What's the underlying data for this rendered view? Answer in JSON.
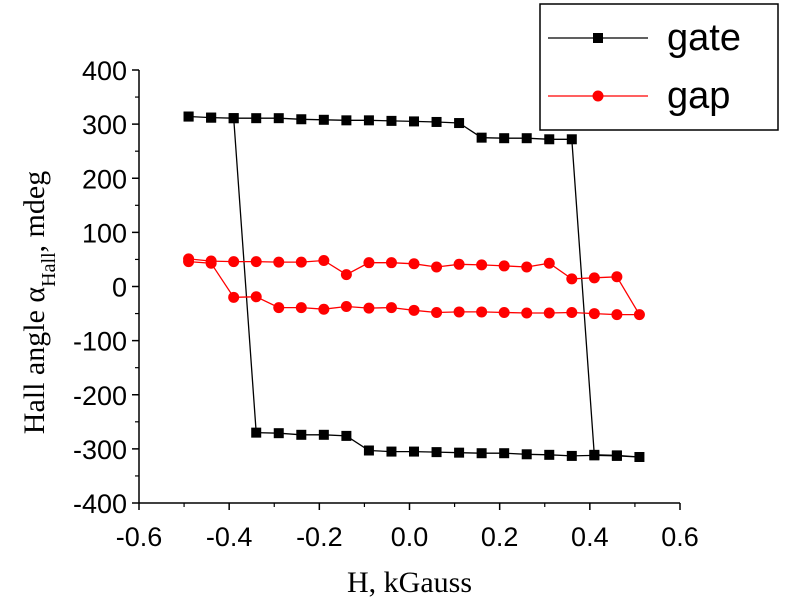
{
  "chart_data": {
    "type": "line",
    "title": "",
    "xlabel": "H, kGauss",
    "ylabel": {
      "prefix": "Hall angle α",
      "subscript": "Hall",
      "suffix": ", mdeg"
    },
    "xlim": [
      -0.6,
      0.6
    ],
    "ylim": [
      -400,
      400
    ],
    "x_ticks": [
      -0.6,
      -0.4,
      -0.2,
      0.0,
      0.2,
      0.4,
      0.6
    ],
    "x_tick_labels": [
      "-0.6",
      "-0.4",
      "-0.2",
      "0.0",
      "0.2",
      "0.4",
      "0.6"
    ],
    "y_ticks": [
      -400,
      -300,
      -200,
      -100,
      0,
      100,
      200,
      300,
      400
    ],
    "y_tick_labels": [
      "-400",
      "-300",
      "-200",
      "-100",
      "0",
      "100",
      "200",
      "300",
      "400"
    ],
    "grid": false,
    "legend_position": "top-right",
    "series": [
      {
        "name": "gate",
        "color": "#000000",
        "marker": "square",
        "points": [
          [
            -0.49,
            314
          ],
          [
            -0.44,
            312
          ],
          [
            -0.39,
            311
          ],
          [
            -0.34,
            311
          ],
          [
            -0.29,
            311
          ],
          [
            -0.24,
            309
          ],
          [
            -0.19,
            308
          ],
          [
            -0.14,
            307
          ],
          [
            -0.09,
            307
          ],
          [
            -0.04,
            306
          ],
          [
            0.01,
            305
          ],
          [
            0.06,
            304
          ],
          [
            0.11,
            302
          ],
          [
            0.16,
            275
          ],
          [
            0.21,
            274
          ],
          [
            0.26,
            274
          ],
          [
            0.31,
            272
          ],
          [
            0.36,
            272
          ],
          [
            0.41,
            -311
          ],
          [
            0.46,
            -312
          ],
          [
            0.51,
            -315
          ],
          [
            0.46,
            -313
          ],
          [
            0.41,
            -312
          ],
          [
            0.36,
            -313
          ],
          [
            0.31,
            -311
          ],
          [
            0.26,
            -310
          ],
          [
            0.21,
            -308
          ],
          [
            0.16,
            -308
          ],
          [
            0.11,
            -307
          ],
          [
            0.06,
            -306
          ],
          [
            0.01,
            -305
          ],
          [
            -0.04,
            -305
          ],
          [
            -0.09,
            -303
          ],
          [
            -0.14,
            -276
          ],
          [
            -0.19,
            -274
          ],
          [
            -0.24,
            -274
          ],
          [
            -0.29,
            -271
          ],
          [
            -0.34,
            -270
          ],
          [
            -0.39,
            311
          ],
          [
            -0.44,
            312
          ],
          [
            -0.49,
            314
          ]
        ]
      },
      {
        "name": "gap",
        "color": "#ff0000",
        "marker": "circle",
        "points": [
          [
            -0.49,
            51
          ],
          [
            -0.44,
            47
          ],
          [
            -0.39,
            46
          ],
          [
            -0.34,
            46
          ],
          [
            -0.29,
            45
          ],
          [
            -0.24,
            45
          ],
          [
            -0.19,
            48
          ],
          [
            -0.14,
            22
          ],
          [
            -0.09,
            44
          ],
          [
            -0.04,
            44
          ],
          [
            0.01,
            42
          ],
          [
            0.06,
            36
          ],
          [
            0.11,
            41
          ],
          [
            0.16,
            40
          ],
          [
            0.21,
            38
          ],
          [
            0.26,
            36
          ],
          [
            0.31,
            43
          ],
          [
            0.36,
            14
          ],
          [
            0.41,
            16
          ],
          [
            0.46,
            18
          ],
          [
            0.51,
            -52
          ],
          [
            0.46,
            -52
          ],
          [
            0.41,
            -50
          ],
          [
            0.36,
            -48
          ],
          [
            0.31,
            -49
          ],
          [
            0.26,
            -49
          ],
          [
            0.21,
            -48
          ],
          [
            0.16,
            -47
          ],
          [
            0.11,
            -47
          ],
          [
            0.06,
            -48
          ],
          [
            0.01,
            -44
          ],
          [
            -0.04,
            -39
          ],
          [
            -0.09,
            -40
          ],
          [
            -0.14,
            -37
          ],
          [
            -0.19,
            -42
          ],
          [
            -0.24,
            -39
          ],
          [
            -0.29,
            -39
          ],
          [
            -0.34,
            -19
          ],
          [
            -0.39,
            -20
          ],
          [
            -0.44,
            43
          ],
          [
            -0.49,
            46
          ]
        ]
      }
    ]
  }
}
